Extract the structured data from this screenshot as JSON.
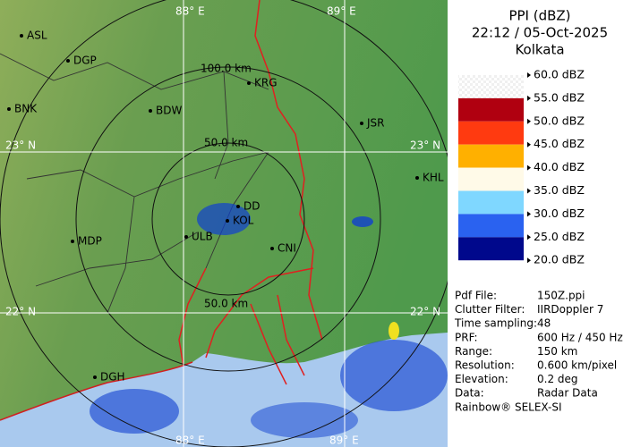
{
  "title": {
    "product": "PPI (dBZ)",
    "time": "22:12 / 05-Oct-2025",
    "site": "Kolkata"
  },
  "legend": {
    "labels": [
      "60.0 dBZ",
      "55.0 dBZ",
      "50.0 dBZ",
      "45.0 dBZ",
      "40.0 dBZ",
      "35.0 dBZ",
      "30.0 dBZ",
      "25.0 dBZ",
      "20.0 dBZ"
    ],
    "band_colors": [
      "#f6f6f6",
      "#b00010",
      "#ff3a10",
      "#ffb000",
      "#fffae8",
      "#7fd7ff",
      "#2a62f0",
      "#00088c"
    ]
  },
  "grid_labels": [
    "88° E",
    "89° E",
    "23° N",
    "23° N",
    "22° N",
    "22° N",
    "88° E",
    "89° E"
  ],
  "range_labels": [
    "100.0 km",
    "50.0 km",
    "50.0 km"
  ],
  "cities": [
    "ASL",
    "DGP",
    "KRG",
    "BDW",
    "BNK",
    "JSR",
    "KHL",
    "DD",
    "KOL",
    "ULB",
    "MDP",
    "CNI",
    "DGH"
  ],
  "info": [
    [
      "Pdf File:",
      "150Z.ppi"
    ],
    [
      "Clutter Filter:",
      "IIRDoppler 7"
    ],
    [
      "Time sampling:48"
    ],
    [
      "PRF:",
      "600 Hz / 450 Hz"
    ],
    [
      "Range:",
      "150 km"
    ],
    [
      "Resolution:",
      "0.600 km/pixel"
    ],
    [
      "Elevation:",
      "0.2 deg"
    ],
    [
      "Data:",
      "Radar Data"
    ],
    [
      "Rainbow® SELEX-SI"
    ]
  ]
}
